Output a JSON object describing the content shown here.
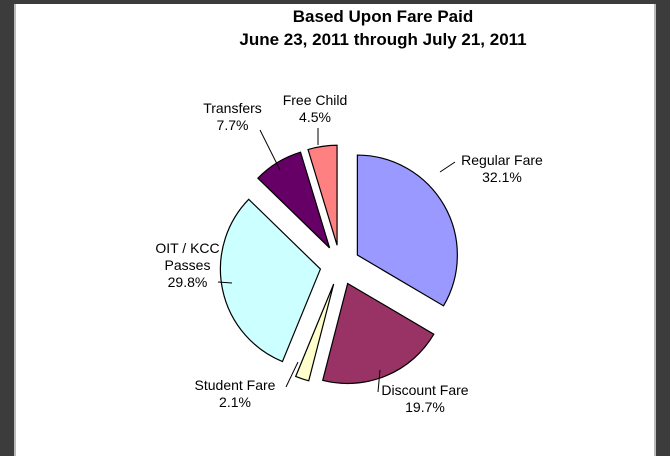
{
  "chart_data": {
    "type": "pie",
    "title": "Based Upon Fare Paid",
    "subtitle": "June 23, 2011 through July 21, 2011",
    "categories": [
      "Regular Fare",
      "Discount Fare",
      "Student Fare",
      "OIT / KCC Passes",
      "Transfers",
      "Free Child"
    ],
    "values": [
      32.1,
      19.7,
      2.1,
      29.8,
      7.7,
      4.5
    ],
    "value_labels": [
      "32.1%",
      "19.7%",
      "2.1%",
      "29.8%",
      "7.7%",
      "4.5%"
    ],
    "colors": [
      "#9999ff",
      "#993366",
      "#ffffcc",
      "#ccffff",
      "#660066",
      "#ff8080"
    ]
  }
}
